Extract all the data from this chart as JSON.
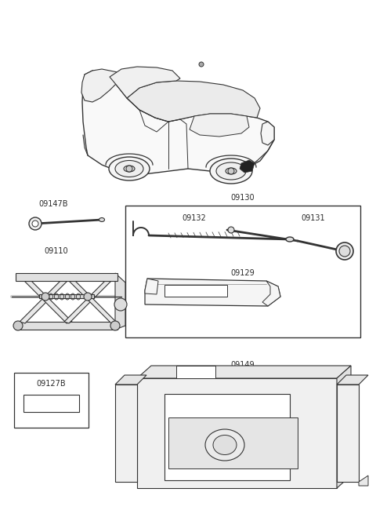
{
  "bg_color": "#ffffff",
  "line_color": "#333333",
  "label_color": "#2a2a2a",
  "label_fontsize": 7.0,
  "fig_width": 4.8,
  "fig_height": 6.55,
  "dpi": 100
}
